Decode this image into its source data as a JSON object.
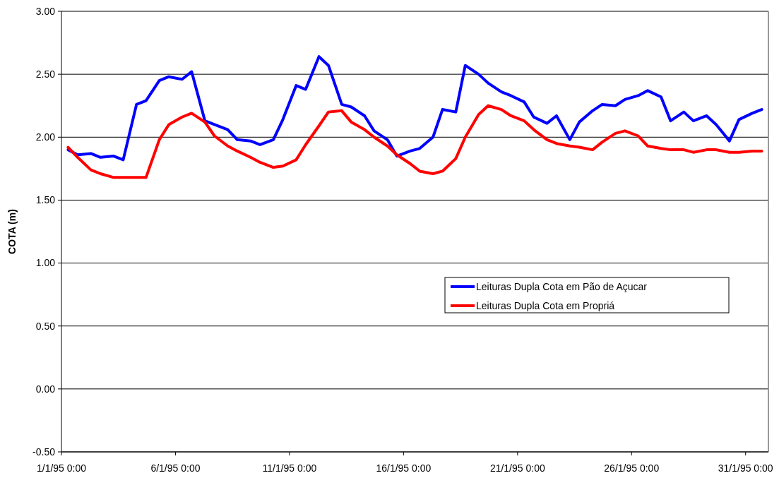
{
  "chart_data": {
    "type": "line",
    "ylabel": "COTA (m)",
    "x": [
      "1995-01-01T07:00",
      "1995-01-01T17:00",
      "1995-01-02T07:00",
      "1995-01-02T17:00",
      "1995-01-03T07:00",
      "1995-01-03T17:00",
      "1995-01-04T07:00",
      "1995-01-04T17:00",
      "1995-01-05T07:00",
      "1995-01-05T17:00",
      "1995-01-06T07:00",
      "1995-01-06T17:00",
      "1995-01-07T07:00",
      "1995-01-07T17:00",
      "1995-01-08T07:00",
      "1995-01-08T17:00",
      "1995-01-09T07:00",
      "1995-01-09T17:00",
      "1995-01-10T07:00",
      "1995-01-10T17:00",
      "1995-01-11T07:00",
      "1995-01-11T17:00",
      "1995-01-12T07:00",
      "1995-01-12T17:00",
      "1995-01-13T07:00",
      "1995-01-13T17:00",
      "1995-01-14T07:00",
      "1995-01-14T17:00",
      "1995-01-15T07:00",
      "1995-01-15T17:00",
      "1995-01-16T07:00",
      "1995-01-16T17:00",
      "1995-01-17T07:00",
      "1995-01-17T17:00",
      "1995-01-18T07:00",
      "1995-01-18T17:00",
      "1995-01-19T07:00",
      "1995-01-19T17:00",
      "1995-01-20T07:00",
      "1995-01-20T17:00",
      "1995-01-21T07:00",
      "1995-01-21T17:00",
      "1995-01-22T07:00",
      "1995-01-22T17:00",
      "1995-01-23T07:00",
      "1995-01-23T17:00",
      "1995-01-24T07:00",
      "1995-01-24T17:00",
      "1995-01-25T07:00",
      "1995-01-25T17:00",
      "1995-01-26T07:00",
      "1995-01-26T17:00",
      "1995-01-27T07:00",
      "1995-01-27T17:00",
      "1995-01-28T07:00",
      "1995-01-28T17:00",
      "1995-01-29T07:00",
      "1995-01-29T17:00",
      "1995-01-30T07:00",
      "1995-01-30T17:00",
      "1995-01-31T07:00",
      "1995-01-31T17:00"
    ],
    "series": [
      {
        "name": "Leituras Dupla Cota em Pão de Açucar",
        "color": "#0000ff",
        "values": [
          1.9,
          1.86,
          1.87,
          1.84,
          1.85,
          1.82,
          2.26,
          2.29,
          2.45,
          2.48,
          2.46,
          2.52,
          2.13,
          2.1,
          2.06,
          1.98,
          1.97,
          1.94,
          1.98,
          2.14,
          2.41,
          2.38,
          2.64,
          2.57,
          2.26,
          2.24,
          2.17,
          2.05,
          1.98,
          1.85,
          1.89,
          1.91,
          2.0,
          2.22,
          2.2,
          2.57,
          2.5,
          2.43,
          2.36,
          2.33,
          2.28,
          2.16,
          2.11,
          2.17,
          1.98,
          2.12,
          2.21,
          2.26,
          2.25,
          2.3,
          2.33,
          2.37,
          2.32,
          2.13,
          2.2,
          2.13,
          2.17,
          2.1,
          1.97,
          2.14,
          2.19,
          2.22
        ]
      },
      {
        "name": "Leituras Dupla Cota em Propriá",
        "color": "#ff0000",
        "values": [
          1.92,
          1.84,
          1.74,
          1.71,
          1.68,
          1.68,
          1.68,
          1.68,
          1.98,
          2.1,
          2.16,
          2.19,
          2.12,
          2.01,
          1.93,
          1.89,
          1.84,
          1.8,
          1.76,
          1.77,
          1.82,
          1.94,
          2.09,
          2.2,
          2.21,
          2.12,
          2.06,
          2.0,
          1.93,
          1.86,
          1.79,
          1.73,
          1.71,
          1.73,
          1.83,
          2.0,
          2.18,
          2.25,
          2.22,
          2.17,
          2.13,
          2.06,
          1.98,
          1.95,
          1.93,
          1.92,
          1.9,
          1.96,
          2.03,
          2.05,
          2.01,
          1.93,
          1.91,
          1.9,
          1.9,
          1.88,
          1.9,
          1.9,
          1.88,
          1.88,
          1.89,
          1.89
        ]
      }
    ],
    "xlim": [
      "1995-01-01T00:00",
      "1995-02-01T00:00"
    ],
    "xticks": [
      {
        "value": "1995-01-01T00:00",
        "label": "1/1/95 0:00"
      },
      {
        "value": "1995-01-06T00:00",
        "label": "6/1/95 0:00"
      },
      {
        "value": "1995-01-11T00:00",
        "label": "11/1/95 0:00"
      },
      {
        "value": "1995-01-16T00:00",
        "label": "16/1/95 0:00"
      },
      {
        "value": "1995-01-21T00:00",
        "label": "21/1/95 0:00"
      },
      {
        "value": "1995-01-26T00:00",
        "label": "26/1/95 0:00"
      },
      {
        "value": "1995-01-31T00:00",
        "label": "31/1/95 0:00"
      }
    ],
    "ylim": [
      -0.5,
      3
    ],
    "yticks": [
      {
        "value": -0.5,
        "label": "-0.50"
      },
      {
        "value": 0,
        "label": "0.00"
      },
      {
        "value": 0.5,
        "label": "0.50"
      },
      {
        "value": 1,
        "label": "1.00"
      },
      {
        "value": 1.5,
        "label": "1.50"
      },
      {
        "value": 2,
        "label": "2.00"
      },
      {
        "value": 2.5,
        "label": "2.50"
      },
      {
        "value": 3,
        "label": "3.00"
      }
    ],
    "grid": "y",
    "legend": "right",
    "marker": "none",
    "line_style": "solid"
  }
}
